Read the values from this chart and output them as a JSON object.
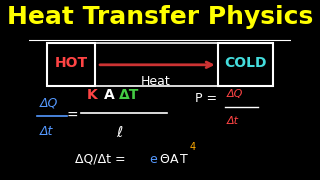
{
  "title": "Heat Transfer Physics",
  "title_color": "#FFFF00",
  "bg_color": "#000000",
  "title_fontsize": 18,
  "hot_label": "HOT",
  "cold_label": "COLD",
  "hot_color": "#FF4444",
  "cold_color": "#44DDDD",
  "heat_label": "Heat",
  "heat_label_color": "#FFFFFF",
  "arrow_color": "#CC3333",
  "box_color": "#FFFFFF"
}
